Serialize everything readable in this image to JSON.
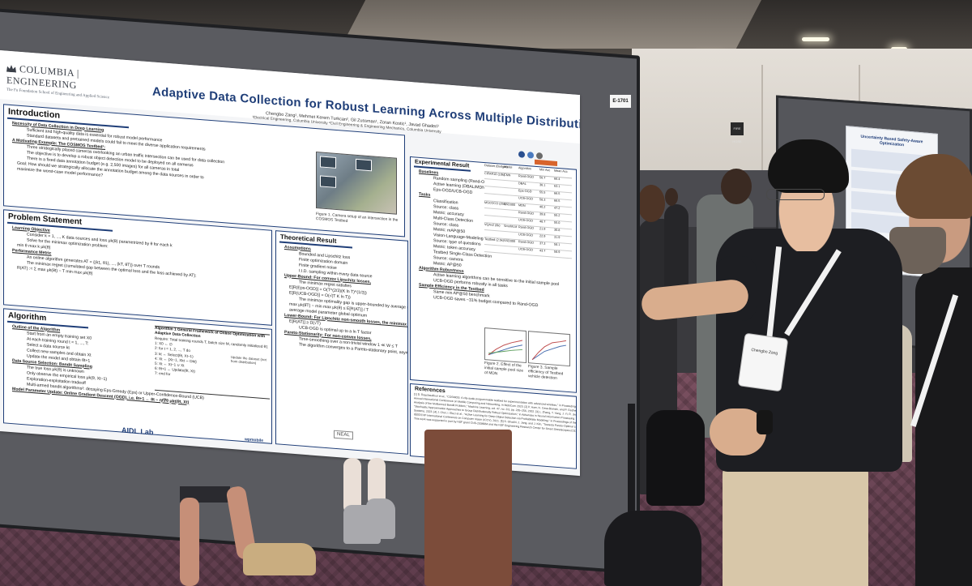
{
  "scene": {
    "board_label": "E-1701",
    "wall_sign": "FIRE HOSE"
  },
  "poster": {
    "logo_main": "COLUMBIA | ENGINEERING",
    "logo_sub": "The Fu Foundation School of Engineering and Applied Science",
    "title": "Adaptive Data Collection for Robust Learning Across Multiple Distributions",
    "authors": "Chengbo Zang¹, Mehmet Kerem Turkcan², Gil Zussman¹, Zoran Kostic¹, Javad Ghaderi¹",
    "affiliation": "¹Electrical Engineering, Columbia University ²Civil Engineering & Engineering Mechanics, Columbia University",
    "introduction": {
      "title": "Introduction",
      "items": [
        {
          "kind": "head",
          "text": "Necessity of Data Collection in Deep Learning"
        },
        {
          "kind": "sub",
          "text": "Sufficient and high-quality data is essential for robust model performance"
        },
        {
          "kind": "sub",
          "text": "Standard datasets and pretrained models could fail to meet the diverse application requirements"
        },
        {
          "kind": "head",
          "text": "A Motivating Example: The COSMOS Testbed¹:"
        },
        {
          "kind": "sub",
          "text": "Three strategically placed cameras overlooking an urban traffic intersection can be used for data collection"
        },
        {
          "kind": "sub",
          "text": "The objective is to develop a robust object detection model to be deployed on all cameras"
        },
        {
          "kind": "sub",
          "text": "There is a fixed data annotation budget (e.g. 2,500 images) for all cameras in total"
        },
        {
          "kind": "bullet",
          "text": "Goal: How should we strategically allocate the annotation budget among the data sources in order to"
        },
        {
          "kind": "bullet",
          "text": "maximize the worst-case model performance?"
        }
      ],
      "figure_caption": "Figure 1. Camera setup of an intersection in the COSMOS Testbed"
    },
    "problem": {
      "title": "Problem Statement",
      "items": [
        {
          "kind": "head",
          "text": "Learning Objective"
        },
        {
          "kind": "sub",
          "text": "Consider k = 1, ..., K data sources and loss μk(θ) parametrized by θ for each k"
        },
        {
          "kind": "sub",
          "text": "Solve for the minimax optimization problem:"
        },
        {
          "kind": "bullet",
          "text": "min θ  max k  μk(θ)"
        },
        {
          "kind": "head",
          "text": "Performance Metric"
        },
        {
          "kind": "sub",
          "text": "An online algorithm generates AT = {(k1, θ1), ..., (kT, θT)} over T rounds"
        },
        {
          "kind": "sub",
          "text": "The minimax regret (cumulated gap between the optimal loss and the loss achieved by AT):"
        },
        {
          "kind": "bullet",
          "text": "R(AT) := Σ max μk(θt) − T min max μk(θ)"
        }
      ]
    },
    "algorithm": {
      "title": "Algorithm",
      "items": [
        {
          "kind": "head",
          "text": "Outline of the Algorithm"
        },
        {
          "kind": "sub",
          "text": "Start from an empty training set X0"
        },
        {
          "kind": "sub",
          "text": "At each training round t = 1, ..., T:"
        },
        {
          "kind": "sub",
          "text": "Select a data source kt"
        },
        {
          "kind": "sub",
          "text": "Collect new samples and obtain Xt"
        },
        {
          "kind": "sub",
          "text": "Update the model and obtain θt+1"
        },
        {
          "kind": "head",
          "text": "Data Source Selection: Bandit Sampling"
        },
        {
          "kind": "sub",
          "text": "The true loss μk(θ) is unknown"
        },
        {
          "kind": "sub",
          "text": "Only observe the empirical loss μk(θ, Xt−1)"
        },
        {
          "kind": "sub",
          "text": "Exploration-exploitation tradeoff"
        },
        {
          "kind": "sub",
          "text": "Multi-armed bandit algorithms²: decaying Eps-Greedy (Eps) or Upper-Confidence-Bound (UCB)"
        },
        {
          "kind": "head",
          "text": "Model Parameter Update: Online Gradient Descent (OGD), i.e. θt+1 ← θt − ηt∇θ μkt(θt, Xt)"
        }
      ],
      "box_title": "Algorithm 1 General Framework of Online Optimization with Adaptive Data Collection",
      "box_lines": [
        "Require: Total training rounds T, batch size M, randomly initialized θ1",
        "1: X0 ← ∅",
        "2: for t = 1, 2, ..., T do",
        "3:   kt ← Select(θt, Xt−1)",
        "4:   Xt ← {Xt−1, Xkt ∼ Dkt}",
        "5:   Xt ← Xt−1 ∪ Xt",
        "6:   θt+1 ← Update(θt, Xt)",
        "7: end for"
      ],
      "box_note": "Update the dataset (not from distribution)"
    },
    "theory": {
      "title": "Theoretical Result",
      "items": [
        {
          "kind": "head",
          "text": "Assumptions"
        },
        {
          "kind": "sub",
          "text": "Bounded and Lipschitz loss"
        },
        {
          "kind": "sub",
          "text": "Finite optimization domain"
        },
        {
          "kind": "sub",
          "text": "Finite gradient noise"
        },
        {
          "kind": "sub",
          "text": "I.I.D. sampling within every data source"
        },
        {
          "kind": "head",
          "text": "Upper-Bound: For convex Lipschitz losses,"
        },
        {
          "kind": "sub",
          "text": "The minimax regret satisfies"
        },
        {
          "kind": "bullet",
          "text": "E[R(Eps-OGD)] = O(T^(2/3)(K ln T)^(1/3))"
        },
        {
          "kind": "bullet",
          "text": "E[R(UCB-OGD)] = O(√(T K ln T))"
        },
        {
          "kind": "sub",
          "text": "The minimax optimality gap is upper-bounded by average minimax regret"
        },
        {
          "kind": "bullet",
          "text": "max μk(θ̄T) − min max μk(θ) ≤ E[R(AT)] / T"
        },
        {
          "kind": "bullet",
          "text": "average model parameter        global optimum"
        },
        {
          "kind": "head",
          "text": "Lower-Bound: For Lipschitz non-smooth losses, the minimax regret of the algorithm satisfies"
        },
        {
          "kind": "bullet",
          "text": "E[R(AT)] ≥ Ω(√T)"
        },
        {
          "kind": "sub",
          "text": "UCB-OGD is optimal up to a ln T factor"
        },
        {
          "kind": "head",
          "text": "Pareto-Stationarity: For non-convex losses,"
        },
        {
          "kind": "sub",
          "text": "Time-smoothing over a non-trivial window 1 ≪ W ≤ T"
        },
        {
          "kind": "sub",
          "text": "The algorithm converges to a Pareto-stationary point, asymptotically, as T → ∞"
        }
      ]
    },
    "experiment": {
      "title": "Experimental Result",
      "items": [
        {
          "kind": "head",
          "text": "Baselines"
        },
        {
          "kind": "sub",
          "text": "Random sampling (Rand-OGD)"
        },
        {
          "kind": "sub",
          "text": "Active learning (DBAL/MDN)"
        },
        {
          "kind": "sub",
          "text": "Eps-OGD/UCB-OGD"
        },
        {
          "kind": "head",
          "text": "Tasks"
        },
        {
          "kind": "sub",
          "text": "Classification"
        },
        {
          "kind": "sub",
          "text": "Source: class"
        },
        {
          "kind": "sub",
          "text": "Metric: accuracy"
        },
        {
          "kind": "sub",
          "text": "Multi-Class Detection"
        },
        {
          "kind": "sub",
          "text": "Source: class"
        },
        {
          "kind": "sub",
          "text": "Metric: mAP@50"
        },
        {
          "kind": "sub",
          "text": "Vision-Language-Modeling"
        },
        {
          "kind": "sub",
          "text": "Source: type of questions"
        },
        {
          "kind": "sub",
          "text": "Metric: token accuracy"
        },
        {
          "kind": "sub",
          "text": "Testbed Single-Class Detection"
        },
        {
          "kind": "sub",
          "text": "Source: camera"
        },
        {
          "kind": "sub",
          "text": "Metric: AP@50"
        },
        {
          "kind": "head",
          "text": "Algorithm Robustness"
        },
        {
          "kind": "sub",
          "text": "Active learning algorithms can be sensitive to the initial sample pool"
        },
        {
          "kind": "sub",
          "text": "UCB-OGD performs robustly in all tasks"
        },
        {
          "kind": "head",
          "text": "Sample Efficiency in the Testbed"
        },
        {
          "kind": "sub",
          "text": "Same min AP@50 benchmark"
        },
        {
          "kind": "sub",
          "text": "UCB-OGD saves ~31% budget compared to Rand-OGD"
        }
      ],
      "table_headers": [
        "Dataset (Budget)",
        "Model",
        "Algorithm",
        "Min Acc",
        "Mean Acc"
      ],
      "table_rows": [
        [
          "CIFAR10 (10k)",
          "CNN",
          "Rand-OGD",
          "56.7",
          "66.4"
        ],
        [
          "",
          "",
          "DBAL",
          "36.1",
          "63.1"
        ],
        [
          "",
          "",
          "Eps-OGD",
          "55.5",
          "66.5"
        ],
        [
          "",
          "",
          "UCB-OGD",
          "58.3",
          "66.5"
        ],
        [
          "MSCOCO (25k)",
          "SSD300",
          "MDN",
          "40.2",
          "47.2"
        ],
        [
          "",
          "",
          "Rand-OGD",
          "39.8",
          "55.2"
        ],
        [
          "",
          "",
          "UCB-OGD",
          "48.7",
          "55.0"
        ],
        [
          "VQAv2 (6k)",
          "SmolVLM",
          "Rand-OGD",
          "21.9",
          "30.8"
        ],
        [
          "",
          "",
          "UCB-OGD",
          "22.9",
          "31.9"
        ],
        [
          "Testbed (2.5k)",
          "SSD300",
          "Rand-OGD",
          "37.3",
          "58.1"
        ],
        [
          "",
          "",
          "UCB-OGD",
          "43.7",
          "58.9"
        ]
      ],
      "figure2_caption": "Figure 2. Effect of the initial sample pool size of MDN",
      "figure3_caption": "Figure 3. Sample efficiency of Testbed vehicle detection",
      "plot_legend": [
        "Rand-OGD",
        "UCB-OGD",
        "MDN"
      ]
    },
    "references": {
      "title": "References",
      "lines": [
        "[1] D. Raychaudhuri et al., \"COSMOS: A city-scale programmable testbed for experimentation with advanced wireless,\" in Proceedings of the 26th",
        "Annual International Conference on Mobile Computing and Networking, in MobiCom 2020. [2] P. Auer, N. Cesa-Bianchi, and P. Fischer, \"Finite-time",
        "Analysis of the Multiarmed Bandit Problem,\" Machine Learning, vol. 47, no. 2/3, pp. 235–256, 2002. [3] L. Zhang, T. Yang, J. Yi, R. Jin, and Z.-H. Zhou,",
        "\"Stochastic Approximation Approaches to Group Distributionally Robust Optimization,\" in Advances in Neural Information Processing",
        "Systems, 2023. [4] J. Choi, I. Elezi et al., \"Active Learning for Deep Object Detection via Probabilistic Modeling,\" in Proceedings of the",
        "IEEE/CVF International Conference on Computer Vision (ICCV), 2021. [5] S. Ghadiri, J. Jang, and J. Kim, \"Towards Pareto-Optimal Learning,\"",
        "This work was supported in part by NSF grant CNS-2038984 and the NSF Engineering Research Center for Smart Streetscapes (CS3)."
      ]
    },
    "footer": {
      "lab": "AIDL Lab",
      "neal": "NEAL",
      "wp": "wpmobile"
    }
  },
  "right_poster": {
    "title": "Uncertainty Based Safety-Aware Optimization"
  },
  "badge": {
    "name": "Chengbo Zang"
  },
  "colors": {
    "poster_navy": "#1f3e78",
    "board_gray": "#5a5b60",
    "carpet": "#6a4556",
    "accent_orange": "#d8642c"
  }
}
